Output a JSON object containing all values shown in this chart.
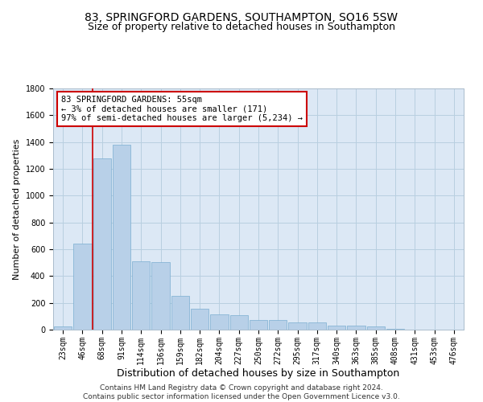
{
  "title": "83, SPRINGFORD GARDENS, SOUTHAMPTON, SO16 5SW",
  "subtitle": "Size of property relative to detached houses in Southampton",
  "xlabel": "Distribution of detached houses by size in Southampton",
  "ylabel": "Number of detached properties",
  "categories": [
    "23sqm",
    "46sqm",
    "68sqm",
    "91sqm",
    "114sqm",
    "136sqm",
    "159sqm",
    "182sqm",
    "204sqm",
    "227sqm",
    "250sqm",
    "272sqm",
    "295sqm",
    "317sqm",
    "340sqm",
    "363sqm",
    "385sqm",
    "408sqm",
    "431sqm",
    "453sqm",
    "476sqm"
  ],
  "values": [
    25,
    640,
    1280,
    1380,
    510,
    505,
    250,
    155,
    115,
    110,
    75,
    70,
    55,
    55,
    30,
    30,
    22,
    5,
    2,
    2,
    2
  ],
  "bar_color": "#b8d0e8",
  "bar_edge_color": "#7aaed0",
  "red_line_x": 1.5,
  "annotation_text": "83 SPRINGFORD GARDENS: 55sqm\n← 3% of detached houses are smaller (171)\n97% of semi-detached houses are larger (5,234) →",
  "annotation_box_color": "#ffffff",
  "annotation_box_edge_color": "#cc0000",
  "red_line_color": "#cc0000",
  "ylim": [
    0,
    1800
  ],
  "yticks": [
    0,
    200,
    400,
    600,
    800,
    1000,
    1200,
    1400,
    1600,
    1800
  ],
  "footer_line1": "Contains HM Land Registry data © Crown copyright and database right 2024.",
  "footer_line2": "Contains public sector information licensed under the Open Government Licence v3.0.",
  "bg_color": "#ffffff",
  "plot_bg_color": "#dce8f5",
  "grid_color": "#b8cfe0",
  "title_fontsize": 10,
  "subtitle_fontsize": 9,
  "xlabel_fontsize": 9,
  "ylabel_fontsize": 8,
  "tick_fontsize": 7,
  "annotation_fontsize": 7.5,
  "footer_fontsize": 6.5
}
